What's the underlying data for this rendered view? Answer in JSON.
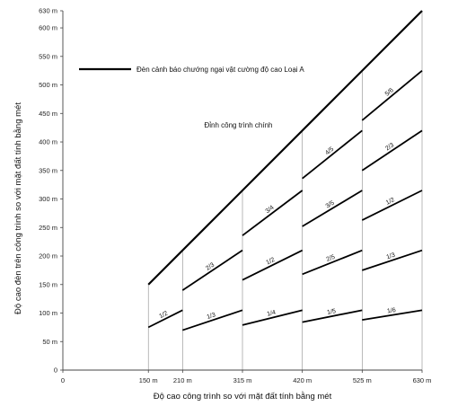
{
  "chart_data": {
    "type": "line",
    "xlabel": "Độ cao công trình so với mặt đất tính bằng mét",
    "ylabel": "Độ cao đèn trên công trình so với mặt đất tính bằng mét",
    "xlim": [
      0,
      630
    ],
    "ylim": [
      0,
      630
    ],
    "x_ticks": [
      {
        "value": 0,
        "label": "0"
      },
      {
        "value": 150,
        "label": "150 m"
      },
      {
        "value": 210,
        "label": "210 m"
      },
      {
        "value": 315,
        "label": "315 m"
      },
      {
        "value": 420,
        "label": "420 m"
      },
      {
        "value": 525,
        "label": "525 m"
      },
      {
        "value": 630,
        "label": "630 m"
      }
    ],
    "y_ticks": [
      {
        "value": 0,
        "label": "0"
      },
      {
        "value": 50,
        "label": "50 m"
      },
      {
        "value": 100,
        "label": "100 m"
      },
      {
        "value": 150,
        "label": "150 m"
      },
      {
        "value": 200,
        "label": "200 m"
      },
      {
        "value": 250,
        "label": "250 m"
      },
      {
        "value": 300,
        "label": "300 m"
      },
      {
        "value": 350,
        "label": "350 m"
      },
      {
        "value": 400,
        "label": "400 m"
      },
      {
        "value": 450,
        "label": "450 m"
      },
      {
        "value": 500,
        "label": "500 m"
      },
      {
        "value": 550,
        "label": "550 m"
      },
      {
        "value": 600,
        "label": "600 m"
      },
      {
        "value": 630,
        "label": "630 m"
      }
    ],
    "grid": "vertical lines at x ticks",
    "legend": {
      "placement": "top-left",
      "entries": [
        {
          "label": "Đèn cảnh báo chướng ngại vật cường độ cao  Loại A",
          "style": "thick black line"
        }
      ]
    },
    "annotations": [
      {
        "text": "Đỉnh công trình chính",
        "x": 248,
        "y": 425
      }
    ],
    "series": [
      {
        "name": "Đỉnh công trình chính",
        "x": [
          150,
          630
        ],
        "y": [
          150,
          630
        ]
      },
      {
        "label": "1/2",
        "x": [
          150,
          210
        ],
        "y": [
          75,
          105
        ]
      },
      {
        "label": "1/3",
        "x": [
          210,
          315
        ],
        "y": [
          70,
          105
        ]
      },
      {
        "label": "2/3",
        "x": [
          210,
          315
        ],
        "y": [
          140,
          210
        ]
      },
      {
        "label": "1/4",
        "x": [
          315,
          420
        ],
        "y": [
          79,
          105
        ]
      },
      {
        "label": "1/2",
        "x": [
          315,
          420
        ],
        "y": [
          158,
          210
        ]
      },
      {
        "label": "3/4",
        "x": [
          315,
          420
        ],
        "y": [
          236,
          315
        ]
      },
      {
        "label": "1/5",
        "x": [
          420,
          525
        ],
        "y": [
          84,
          105
        ]
      },
      {
        "label": "2/5",
        "x": [
          420,
          525
        ],
        "y": [
          168,
          210
        ]
      },
      {
        "label": "3/5",
        "x": [
          420,
          525
        ],
        "y": [
          252,
          315
        ]
      },
      {
        "label": "4/5",
        "x": [
          420,
          525
        ],
        "y": [
          336,
          420
        ]
      },
      {
        "label": "1/6",
        "x": [
          525,
          630
        ],
        "y": [
          88,
          105
        ]
      },
      {
        "label": "1/3",
        "x": [
          525,
          630
        ],
        "y": [
          175,
          210
        ]
      },
      {
        "label": "1/2",
        "x": [
          525,
          630
        ],
        "y": [
          263,
          315
        ]
      },
      {
        "label": "2/3",
        "x": [
          525,
          630
        ],
        "y": [
          350,
          420
        ]
      },
      {
        "label": "5/6",
        "x": [
          525,
          630
        ],
        "y": [
          438,
          525
        ]
      }
    ]
  }
}
